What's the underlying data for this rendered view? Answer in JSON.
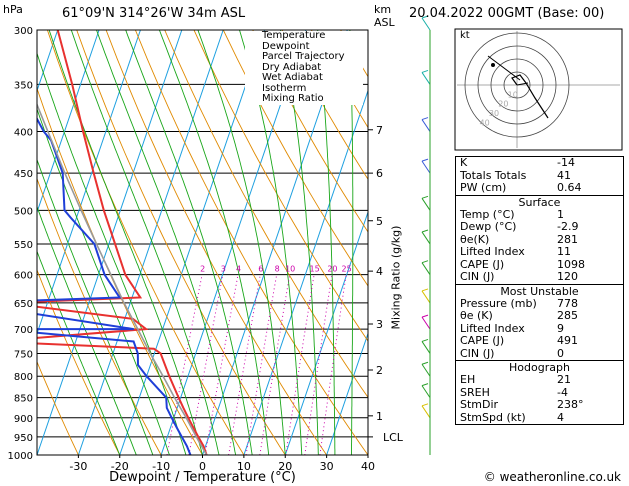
{
  "header": {
    "hpa": "hPa",
    "location": "61°09'N 314°26'W 34m ASL",
    "km": "km",
    "asl": "ASL",
    "datetime": "20.04.2022 00GMT (Base: 00)"
  },
  "legend": {
    "items": [
      {
        "label": "Temperature",
        "color": "#e8312f",
        "style": "solid"
      },
      {
        "label": "Dewpoint",
        "color": "#1f3fd8",
        "style": "solid"
      },
      {
        "label": "Parcel Trajectory",
        "color": "#9a9a9a",
        "style": "solid"
      },
      {
        "label": "Dry Adiabat",
        "color": "#e08a00",
        "style": "solid"
      },
      {
        "label": "Wet Adiabat",
        "color": "#19a619",
        "style": "solid"
      },
      {
        "label": "Isotherm",
        "color": "#1ea0e0",
        "style": "solid"
      },
      {
        "label": "Mixing Ratio",
        "color": "#cc00aa",
        "style": "dotted"
      }
    ]
  },
  "chart_data": {
    "type": "line",
    "xlabel": "Dewpoint / Temperature (°C)",
    "ylabel_right": "Mixing Ratio (g/kg)",
    "pressure_levels": [
      "300",
      "350",
      "400",
      "450",
      "500",
      "550",
      "600",
      "650",
      "700",
      "750",
      "800",
      "850",
      "900",
      "950",
      "1000"
    ],
    "pressure_values": [
      300,
      350,
      400,
      450,
      500,
      550,
      600,
      650,
      700,
      750,
      800,
      850,
      900,
      950,
      1000
    ],
    "x_ticks": [
      "-30",
      "-20",
      "-10",
      "0",
      "10",
      "20",
      "30",
      "40"
    ],
    "x_tick_values": [
      -30,
      -20,
      -10,
      0,
      10,
      20,
      30,
      40
    ],
    "xlim": [
      -40,
      40
    ],
    "ylim": [
      1000,
      300
    ],
    "skew": 35,
    "km_labels": [
      {
        "label": "7",
        "p": 398
      },
      {
        "label": "6",
        "p": 450
      },
      {
        "label": "5",
        "p": 515
      },
      {
        "label": "4",
        "p": 594
      },
      {
        "label": "3",
        "p": 690
      },
      {
        "label": "2",
        "p": 786
      },
      {
        "label": "1",
        "p": 895
      },
      {
        "label": "LCL",
        "p": 950
      }
    ],
    "mixing_ratio_labels": [
      "2",
      "3",
      "4",
      "6",
      "8",
      "10",
      "15",
      "20",
      "25"
    ],
    "mixing_ratio_values": [
      2,
      3,
      4,
      6,
      8,
      10,
      15,
      20,
      25
    ],
    "mixing_ratio_label_p": 595,
    "series": [
      {
        "name": "Temperature",
        "color": "#e8312f",
        "p": [
          1000,
          975,
          950,
          925,
          900,
          875,
          850,
          800,
          750,
          740,
          725,
          700,
          680,
          650,
          640,
          600,
          550,
          500,
          450,
          400,
          350,
          300
        ],
        "t": [
          1,
          -0.5,
          -2.5,
          -4.5,
          -6.5,
          -8.5,
          -10.5,
          -14.5,
          -18.5,
          -20.5,
          -60,
          -24,
          -28,
          -60,
          -28,
          -33.5,
          -38.5,
          -44,
          -49.5,
          -55.5,
          -62,
          -70
        ]
      },
      {
        "name": "Dewpoint",
        "color": "#1f3fd8",
        "p": [
          1000,
          975,
          950,
          925,
          900,
          875,
          850,
          800,
          775,
          750,
          725,
          700,
          700,
          650,
          640,
          600,
          550,
          510,
          500,
          450,
          410,
          400,
          350,
          330,
          300
        ],
        "t": [
          -2.9,
          -4.5,
          -6.5,
          -8.5,
          -10.5,
          -12.5,
          -13.5,
          -20,
          -23,
          -24,
          -26,
          -60,
          -27,
          -70,
          -33,
          -38.5,
          -43.5,
          -51.5,
          -53.5,
          -57,
          -62.5,
          -65,
          -75,
          -77,
          -85
        ]
      },
      {
        "name": "Parcel Trajectory",
        "color": "#9a9a9a",
        "p": [
          1000,
          950,
          900,
          850,
          800,
          750,
          700,
          650,
          600,
          550,
          500,
          450,
          400,
          350,
          300
        ],
        "t": [
          1,
          -3,
          -7,
          -11.5,
          -16,
          -21,
          -26,
          -31.5,
          -37,
          -43,
          -49.5,
          -56.5,
          -64,
          -72.5,
          -81.5
        ]
      }
    ]
  },
  "hodograph": {
    "label": "kt",
    "ring_labels": [
      "10",
      "20",
      "30",
      "40"
    ],
    "ring_values": [
      10,
      20,
      30,
      40
    ]
  },
  "indices": [
    {
      "label": "K",
      "value": "-14"
    },
    {
      "label": "Totals Totals",
      "value": "41"
    },
    {
      "label": "PW (cm)",
      "value": "0.64"
    }
  ],
  "surface": {
    "title": "Surface",
    "rows": [
      {
        "label": "Temp (°C)",
        "value": "1"
      },
      {
        "label": "Dewp (°C)",
        "value": "-2.9"
      },
      {
        "label": "θe(K)",
        "value": "281"
      },
      {
        "label": "Lifted Index",
        "value": "11"
      },
      {
        "label": "CAPE (J)",
        "value": "1098"
      },
      {
        "label": "CIN (J)",
        "value": "120"
      }
    ]
  },
  "most_unstable": {
    "title": "Most Unstable",
    "rows": [
      {
        "label": "Pressure (mb)",
        "value": "778"
      },
      {
        "label": "θe (K)",
        "value": "285"
      },
      {
        "label": "Lifted Index",
        "value": "9"
      },
      {
        "label": "CAPE (J)",
        "value": "491"
      },
      {
        "label": "CIN (J)",
        "value": "0"
      }
    ]
  },
  "hodograph_table": {
    "title": "Hodograph",
    "rows": [
      {
        "label": "EH",
        "value": "21"
      },
      {
        "label": "SREH",
        "value": "-4"
      },
      {
        "label": "StmDir",
        "value": "238°"
      },
      {
        "label": "StmSpd (kt)",
        "value": "4"
      }
    ]
  },
  "footer": {
    "copyright": "© weatheronline.co.uk"
  }
}
